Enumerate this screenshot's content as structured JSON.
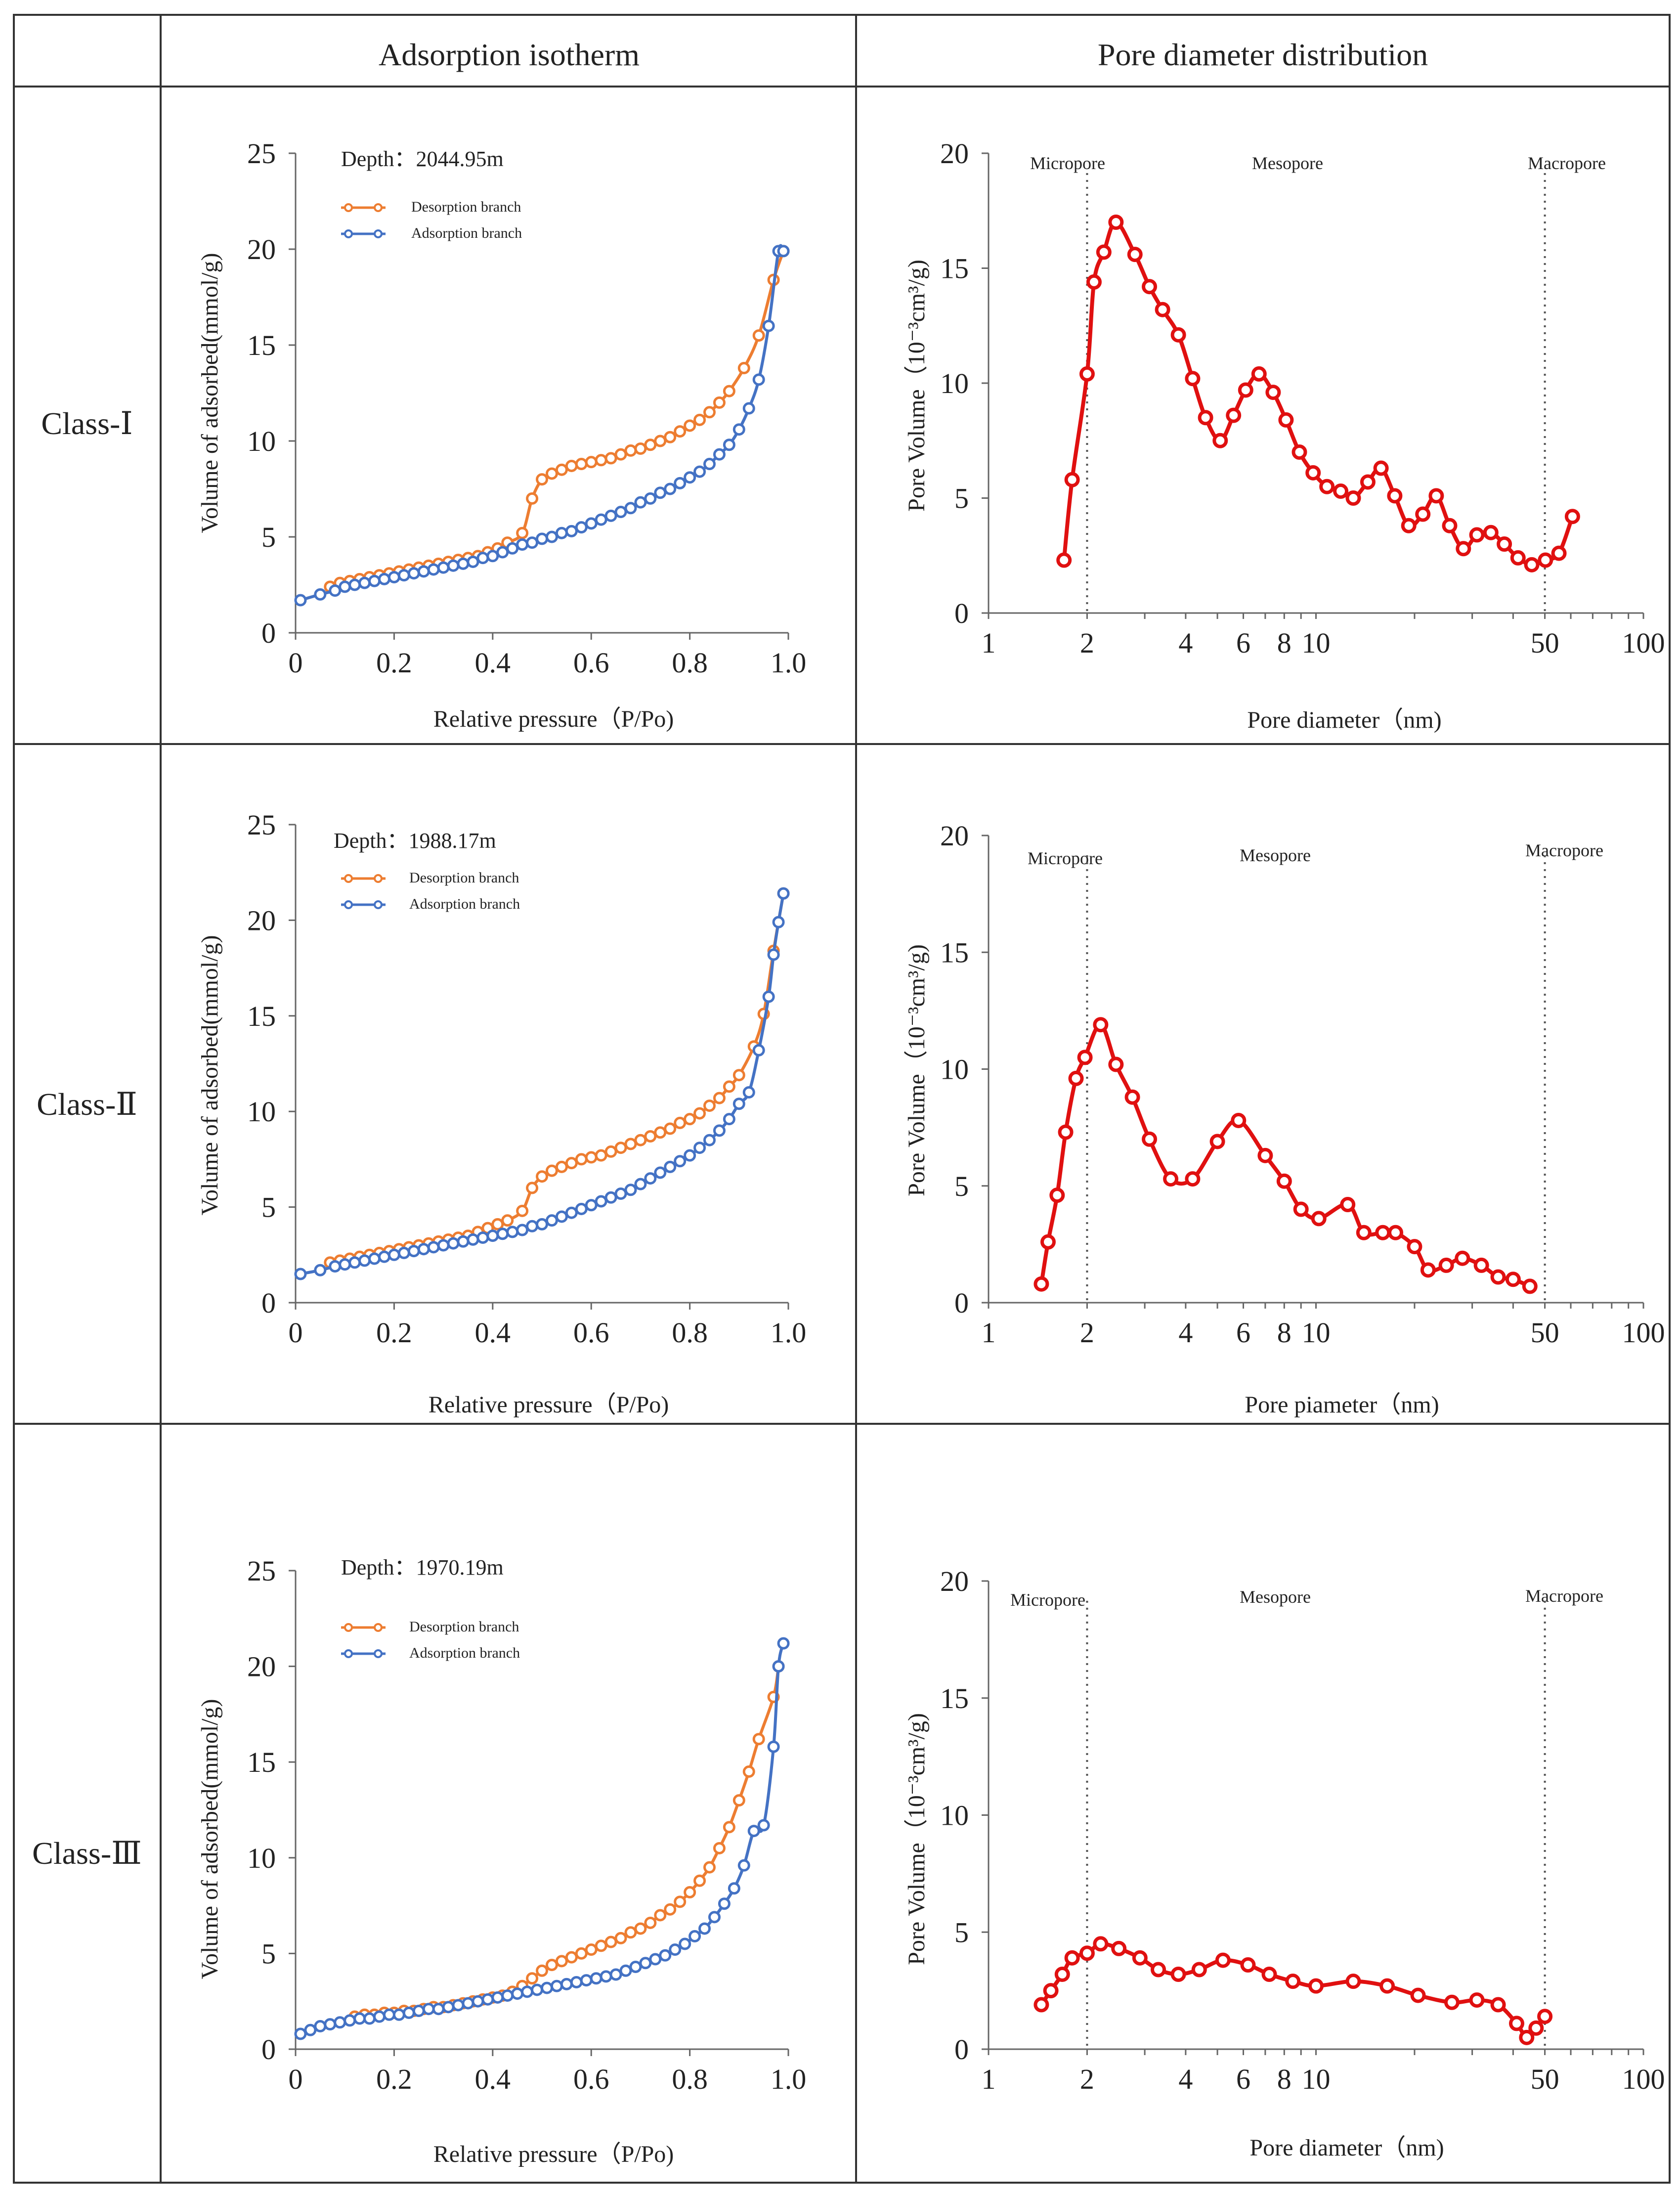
{
  "headers": {
    "col1": "Adsorption isotherm",
    "col2": "Pore diameter distribution"
  },
  "rows": [
    {
      "class_label": "Class-Ⅰ",
      "isotherm": {
        "depth_label": "Depth：2044.95m",
        "legend": [
          "Desorption branch",
          "Adsorption branch"
        ],
        "xlabel": "Relative pressure（P/Po)",
        "ylabel": "Volume of adsorbed(mmol/g)",
        "xticks": [
          "0",
          "0.2",
          "0.4",
          "0.6",
          "0.8",
          "1.0"
        ],
        "yticks": [
          "0",
          "5",
          "10",
          "15",
          "20",
          "25"
        ]
      },
      "pore": {
        "regions": [
          "Micropore",
          "Mesopore",
          "Macropore"
        ],
        "xlabel": "Pore diameter（nm)",
        "ylabel": "Pore Volume（10⁻³cm³/g)",
        "xticks": [
          "1",
          "2",
          "4",
          "6",
          "8",
          "10",
          "50",
          "100"
        ],
        "yticks": [
          "0",
          "5",
          "10",
          "15",
          "20"
        ]
      }
    },
    {
      "class_label": "Class-Ⅱ",
      "isotherm": {
        "depth_label": "Depth：1988.17m",
        "legend": [
          "Desorption branch",
          "Adsorption branch"
        ],
        "xlabel": "Relative pressure（P/Po)",
        "ylabel": "Volume of adsorbed(mmol/g)",
        "xticks": [
          "0",
          "0.2",
          "0.4",
          "0.6",
          "0.8",
          "1.0"
        ],
        "yticks": [
          "0",
          "5",
          "10",
          "15",
          "20",
          "25"
        ]
      },
      "pore": {
        "regions": [
          "Micropore",
          "Mesopore",
          "Macropore"
        ],
        "xlabel": "Pore piameter（nm)",
        "ylabel": "Pore Volume（10⁻³cm³/g)",
        "xticks": [
          "1",
          "2",
          "4",
          "6",
          "8",
          "10",
          "50",
          "100"
        ],
        "yticks": [
          "0",
          "5",
          "10",
          "15",
          "20"
        ]
      }
    },
    {
      "class_label": "Class-Ⅲ",
      "isotherm": {
        "depth_label": "Depth：1970.19m",
        "legend": [
          "Desorption branch",
          "Adsorption branch"
        ],
        "xlabel": "Relative pressure（P/Po)",
        "ylabel": "Volume of adsorbed(mmol/g)",
        "xticks": [
          "0",
          "0.2",
          "0.4",
          "0.6",
          "0.8",
          "1.0"
        ],
        "yticks": [
          "0",
          "5",
          "10",
          "15",
          "20",
          "25"
        ]
      },
      "pore": {
        "regions": [
          "Micropore",
          "Mesopore",
          "Macropore"
        ],
        "xlabel": "Pore diameter（nm)",
        "ylabel": "Pore Volume（10⁻³cm³/g)",
        "xticks": [
          "1",
          "2",
          "4",
          "6",
          "8",
          "10",
          "50",
          "100"
        ],
        "yticks": [
          "0",
          "5",
          "10",
          "15",
          "20"
        ]
      }
    }
  ],
  "colors": {
    "desorption": "#ED7D31",
    "adsorption": "#4472C4",
    "pore": "#E01010",
    "border": "#333333"
  },
  "chart_data": [
    {
      "type": "line",
      "title": "Class-Ⅰ Adsorption isotherm (Depth：2044.95m)",
      "xlabel": "Relative pressure（P/Po)",
      "ylabel": "Volume of adsorbed(mmol/g)",
      "xlim": [
        0,
        1.0
      ],
      "ylim": [
        0,
        25
      ],
      "series": [
        {
          "name": "Desorption branch",
          "x": [
            0.07,
            0.09,
            0.11,
            0.13,
            0.15,
            0.17,
            0.19,
            0.21,
            0.23,
            0.25,
            0.27,
            0.29,
            0.31,
            0.33,
            0.35,
            0.37,
            0.39,
            0.41,
            0.43,
            0.46,
            0.48,
            0.5,
            0.52,
            0.54,
            0.56,
            0.58,
            0.6,
            0.62,
            0.64,
            0.66,
            0.68,
            0.7,
            0.72,
            0.74,
            0.76,
            0.78,
            0.8,
            0.82,
            0.84,
            0.86,
            0.88,
            0.91,
            0.94,
            0.97,
            0.99
          ],
          "y": [
            2.4,
            2.6,
            2.7,
            2.8,
            2.9,
            3.0,
            3.1,
            3.2,
            3.3,
            3.4,
            3.5,
            3.6,
            3.7,
            3.8,
            3.9,
            4.0,
            4.2,
            4.4,
            4.7,
            5.2,
            7.0,
            8.0,
            8.3,
            8.5,
            8.7,
            8.8,
            8.9,
            9.0,
            9.1,
            9.3,
            9.5,
            9.6,
            9.8,
            10.0,
            10.2,
            10.5,
            10.8,
            11.1,
            11.5,
            12.0,
            12.6,
            13.8,
            15.5,
            18.4,
            19.9
          ]
        },
        {
          "name": "Adsorption branch",
          "x": [
            0.01,
            0.05,
            0.08,
            0.1,
            0.12,
            0.14,
            0.16,
            0.18,
            0.2,
            0.22,
            0.24,
            0.26,
            0.28,
            0.3,
            0.32,
            0.34,
            0.36,
            0.38,
            0.4,
            0.42,
            0.44,
            0.46,
            0.48,
            0.5,
            0.52,
            0.54,
            0.56,
            0.58,
            0.6,
            0.62,
            0.64,
            0.66,
            0.68,
            0.7,
            0.72,
            0.74,
            0.76,
            0.78,
            0.8,
            0.82,
            0.84,
            0.86,
            0.88,
            0.9,
            0.92,
            0.94,
            0.96,
            0.98,
            0.99
          ],
          "y": [
            1.7,
            2.0,
            2.2,
            2.4,
            2.5,
            2.6,
            2.7,
            2.8,
            2.9,
            3.0,
            3.1,
            3.2,
            3.3,
            3.4,
            3.5,
            3.6,
            3.7,
            3.9,
            4.0,
            4.2,
            4.4,
            4.6,
            4.7,
            4.9,
            5.0,
            5.2,
            5.3,
            5.5,
            5.7,
            5.9,
            6.1,
            6.3,
            6.5,
            6.8,
            7.0,
            7.3,
            7.5,
            7.8,
            8.1,
            8.4,
            8.8,
            9.3,
            9.8,
            10.6,
            11.7,
            13.2,
            16.0,
            19.9,
            19.9
          ]
        }
      ]
    },
    {
      "type": "line",
      "title": "Class-Ⅰ Pore diameter distribution",
      "xlabel": "Pore diameter（nm)",
      "ylabel": "Pore Volume（10⁻³cm³/g)",
      "xscale": "log",
      "xlim": [
        1,
        100
      ],
      "ylim": [
        0,
        20
      ],
      "region_boundaries_nm": [
        2,
        50
      ],
      "series": [
        {
          "name": "Pore volume",
          "x": [
            1.7,
            1.8,
            2.0,
            2.1,
            2.25,
            2.45,
            2.8,
            3.1,
            3.4,
            3.8,
            4.2,
            4.6,
            5.1,
            5.6,
            6.1,
            6.7,
            7.4,
            8.1,
            8.9,
            9.8,
            10.8,
            11.9,
            13.0,
            14.4,
            15.8,
            17.4,
            19.2,
            21.2,
            23.3,
            25.6,
            28.2,
            31.0,
            34.2,
            37.6,
            41.4,
            45.6,
            50.2,
            55.2,
            60.7
          ],
          "y": [
            2.3,
            5.8,
            10.4,
            14.4,
            15.7,
            17.0,
            15.6,
            14.2,
            13.2,
            12.1,
            10.2,
            8.5,
            7.5,
            8.6,
            9.7,
            10.4,
            9.6,
            8.4,
            7.0,
            6.1,
            5.5,
            5.3,
            5.0,
            5.7,
            6.3,
            5.1,
            3.8,
            4.3,
            5.1,
            3.8,
            2.8,
            3.4,
            3.5,
            3.0,
            2.4,
            2.1,
            2.3,
            2.6,
            4.2
          ]
        }
      ]
    },
    {
      "type": "line",
      "title": "Class-Ⅱ Adsorption isotherm (Depth：1988.17m)",
      "xlabel": "Relative pressure（P/Po)",
      "ylabel": "Volume of adsorbed(mmol/g)",
      "xlim": [
        0,
        1.0
      ],
      "ylim": [
        0,
        25
      ],
      "series": [
        {
          "name": "Desorption branch",
          "x": [
            0.07,
            0.09,
            0.11,
            0.13,
            0.15,
            0.17,
            0.19,
            0.21,
            0.23,
            0.25,
            0.27,
            0.29,
            0.31,
            0.33,
            0.35,
            0.37,
            0.39,
            0.41,
            0.43,
            0.46,
            0.48,
            0.5,
            0.52,
            0.54,
            0.56,
            0.58,
            0.6,
            0.62,
            0.64,
            0.66,
            0.68,
            0.7,
            0.72,
            0.74,
            0.76,
            0.78,
            0.8,
            0.82,
            0.84,
            0.86,
            0.88,
            0.9,
            0.93,
            0.95,
            0.97,
            0.99
          ],
          "y": [
            2.1,
            2.2,
            2.3,
            2.4,
            2.5,
            2.6,
            2.7,
            2.8,
            2.9,
            3.0,
            3.1,
            3.2,
            3.3,
            3.4,
            3.5,
            3.7,
            3.9,
            4.1,
            4.3,
            4.8,
            6.0,
            6.6,
            6.9,
            7.1,
            7.3,
            7.5,
            7.6,
            7.7,
            7.9,
            8.1,
            8.3,
            8.5,
            8.7,
            8.9,
            9.1,
            9.4,
            9.6,
            9.9,
            10.3,
            10.7,
            11.3,
            11.9,
            13.4,
            15.1,
            18.4,
            21.4
          ]
        },
        {
          "name": "Adsorption branch",
          "x": [
            0.01,
            0.05,
            0.08,
            0.1,
            0.12,
            0.14,
            0.16,
            0.18,
            0.2,
            0.22,
            0.24,
            0.26,
            0.28,
            0.3,
            0.32,
            0.34,
            0.36,
            0.38,
            0.4,
            0.42,
            0.44,
            0.46,
            0.48,
            0.5,
            0.52,
            0.54,
            0.56,
            0.58,
            0.6,
            0.62,
            0.64,
            0.66,
            0.68,
            0.7,
            0.72,
            0.74,
            0.76,
            0.78,
            0.8,
            0.82,
            0.84,
            0.86,
            0.88,
            0.9,
            0.92,
            0.94,
            0.96,
            0.97,
            0.98,
            0.99
          ],
          "y": [
            1.5,
            1.7,
            1.9,
            2.0,
            2.1,
            2.2,
            2.3,
            2.4,
            2.5,
            2.6,
            2.7,
            2.8,
            2.9,
            3.0,
            3.1,
            3.2,
            3.3,
            3.4,
            3.5,
            3.6,
            3.7,
            3.8,
            4.0,
            4.1,
            4.3,
            4.5,
            4.7,
            4.9,
            5.1,
            5.3,
            5.5,
            5.7,
            5.9,
            6.2,
            6.5,
            6.8,
            7.1,
            7.4,
            7.7,
            8.1,
            8.5,
            9.0,
            9.6,
            10.4,
            11.0,
            13.2,
            16.0,
            18.2,
            19.9,
            21.4
          ]
        }
      ]
    },
    {
      "type": "line",
      "title": "Class-Ⅱ Pore diameter distribution",
      "xlabel": "Pore piameter（nm)",
      "ylabel": "Pore Volume（10⁻³cm³/g)",
      "xscale": "log",
      "xlim": [
        1,
        100
      ],
      "ylim": [
        0,
        20
      ],
      "region_boundaries_nm": [
        2,
        50
      ],
      "series": [
        {
          "name": "Pore volume",
          "x": [
            1.45,
            1.52,
            1.62,
            1.72,
            1.85,
            1.97,
            2.2,
            2.45,
            2.75,
            3.1,
            3.6,
            4.2,
            5.0,
            5.8,
            7.0,
            8.0,
            9.0,
            10.2,
            12.5,
            14.0,
            16.0,
            17.5,
            20.0,
            22.0,
            25.0,
            28.0,
            32.0,
            36.0,
            40.0,
            45.0
          ],
          "y": [
            0.8,
            2.6,
            4.6,
            7.3,
            9.6,
            10.5,
            11.9,
            10.2,
            8.8,
            7.0,
            5.3,
            5.3,
            6.9,
            7.8,
            6.3,
            5.2,
            4.0,
            3.6,
            4.2,
            3.0,
            3.0,
            3.0,
            2.4,
            1.4,
            1.6,
            1.9,
            1.6,
            1.1,
            1.0,
            0.7
          ]
        }
      ]
    },
    {
      "type": "line",
      "title": "Class-Ⅲ Adsorption isotherm (Depth：1970.19m)",
      "xlabel": "Relative pressure（P/Po)",
      "ylabel": "Volume of adsorbed(mmol/g)",
      "xlim": [
        0,
        1.0
      ],
      "ylim": [
        0,
        25
      ],
      "series": [
        {
          "name": "Desorption branch",
          "x": [
            0.12,
            0.14,
            0.16,
            0.18,
            0.2,
            0.22,
            0.24,
            0.26,
            0.28,
            0.3,
            0.32,
            0.34,
            0.36,
            0.38,
            0.4,
            0.42,
            0.44,
            0.46,
            0.48,
            0.5,
            0.52,
            0.54,
            0.56,
            0.58,
            0.6,
            0.62,
            0.64,
            0.66,
            0.68,
            0.7,
            0.72,
            0.74,
            0.76,
            0.78,
            0.8,
            0.82,
            0.84,
            0.86,
            0.88,
            0.9,
            0.92,
            0.94,
            0.97,
            0.98
          ],
          "y": [
            1.7,
            1.8,
            1.8,
            1.9,
            1.9,
            2.0,
            2.0,
            2.1,
            2.2,
            2.2,
            2.3,
            2.4,
            2.5,
            2.6,
            2.7,
            2.8,
            3.0,
            3.3,
            3.7,
            4.1,
            4.4,
            4.6,
            4.8,
            5.0,
            5.2,
            5.4,
            5.6,
            5.8,
            6.1,
            6.3,
            6.6,
            7.0,
            7.3,
            7.7,
            8.2,
            8.8,
            9.5,
            10.5,
            11.6,
            13.0,
            14.5,
            16.2,
            18.4,
            20.0
          ]
        },
        {
          "name": "Adsorption branch",
          "x": [
            0.01,
            0.03,
            0.05,
            0.07,
            0.09,
            0.11,
            0.13,
            0.15,
            0.17,
            0.19,
            0.21,
            0.23,
            0.25,
            0.27,
            0.29,
            0.31,
            0.33,
            0.35,
            0.37,
            0.39,
            0.41,
            0.43,
            0.45,
            0.47,
            0.49,
            0.51,
            0.53,
            0.55,
            0.57,
            0.59,
            0.61,
            0.63,
            0.65,
            0.67,
            0.69,
            0.71,
            0.73,
            0.75,
            0.77,
            0.79,
            0.81,
            0.83,
            0.85,
            0.87,
            0.89,
            0.91,
            0.93,
            0.95,
            0.97,
            0.98,
            0.99
          ],
          "y": [
            0.8,
            1.0,
            1.2,
            1.3,
            1.4,
            1.5,
            1.6,
            1.6,
            1.7,
            1.8,
            1.8,
            1.9,
            2.0,
            2.1,
            2.1,
            2.2,
            2.3,
            2.4,
            2.5,
            2.6,
            2.7,
            2.8,
            2.9,
            3.0,
            3.1,
            3.2,
            3.3,
            3.4,
            3.5,
            3.6,
            3.7,
            3.8,
            3.9,
            4.1,
            4.3,
            4.5,
            4.7,
            4.9,
            5.2,
            5.5,
            5.9,
            6.3,
            6.9,
            7.6,
            8.4,
            9.6,
            11.4,
            11.7,
            15.8,
            20.0,
            21.2
          ]
        }
      ]
    },
    {
      "type": "line",
      "title": "Class-Ⅲ Pore diameter distribution",
      "xlabel": "Pore diameter（nm)",
      "ylabel": "Pore Volume（10⁻³cm³/g)",
      "xscale": "log",
      "xlim": [
        1,
        100
      ],
      "ylim": [
        0,
        20
      ],
      "region_boundaries_nm": [
        2,
        50
      ],
      "series": [
        {
          "name": "Pore volume",
          "x": [
            1.45,
            1.55,
            1.68,
            1.8,
            2.0,
            2.2,
            2.5,
            2.9,
            3.3,
            3.8,
            4.4,
            5.2,
            6.2,
            7.2,
            8.5,
            10.0,
            13.0,
            16.5,
            20.5,
            26.0,
            31.0,
            36.0,
            41.0,
            44.0,
            47.0,
            50.0
          ],
          "y": [
            1.9,
            2.5,
            3.2,
            3.9,
            4.1,
            4.5,
            4.3,
            3.9,
            3.4,
            3.2,
            3.4,
            3.8,
            3.6,
            3.2,
            2.9,
            2.7,
            2.9,
            2.7,
            2.3,
            2.0,
            2.1,
            1.9,
            1.1,
            0.5,
            0.9,
            1.4
          ]
        }
      ]
    }
  ]
}
